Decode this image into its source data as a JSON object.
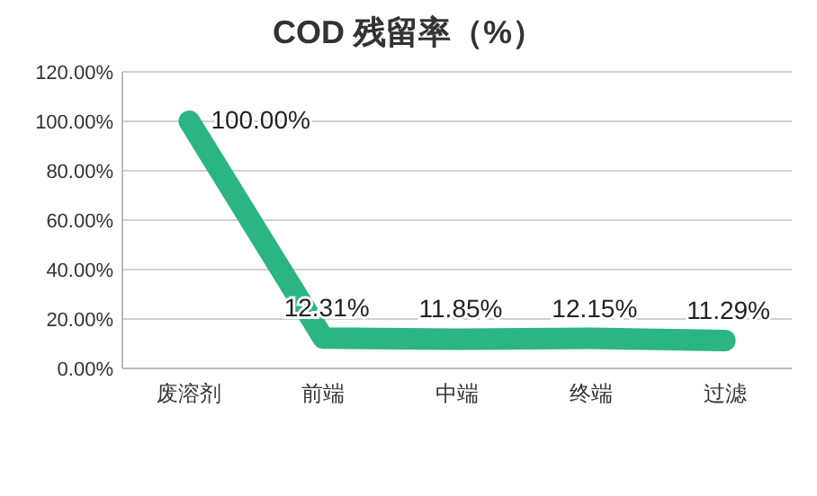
{
  "chart_data": {
    "type": "line",
    "title": "COD 残留率（%）",
    "categories": [
      "废溶剂",
      "前端",
      "中端",
      "终端",
      "过滤"
    ],
    "values": [
      100,
      12.31,
      11.85,
      12.15,
      11.29
    ],
    "value_labels": [
      "100.00%",
      "12.31%",
      "11.85%",
      "12.15%",
      "11.29%"
    ],
    "color": "#2bb583",
    "ylim": [
      0,
      120
    ],
    "yticks": [
      {
        "value": 0,
        "label": "0.00%"
      },
      {
        "value": 20,
        "label": "20.00%"
      },
      {
        "value": 40,
        "label": "40.00%"
      },
      {
        "value": 60,
        "label": "60.00%"
      },
      {
        "value": 80,
        "label": "80.00%"
      },
      {
        "value": 100,
        "label": "100.00%"
      },
      {
        "value": 120,
        "label": "120.00%"
      }
    ],
    "grid": "y"
  }
}
